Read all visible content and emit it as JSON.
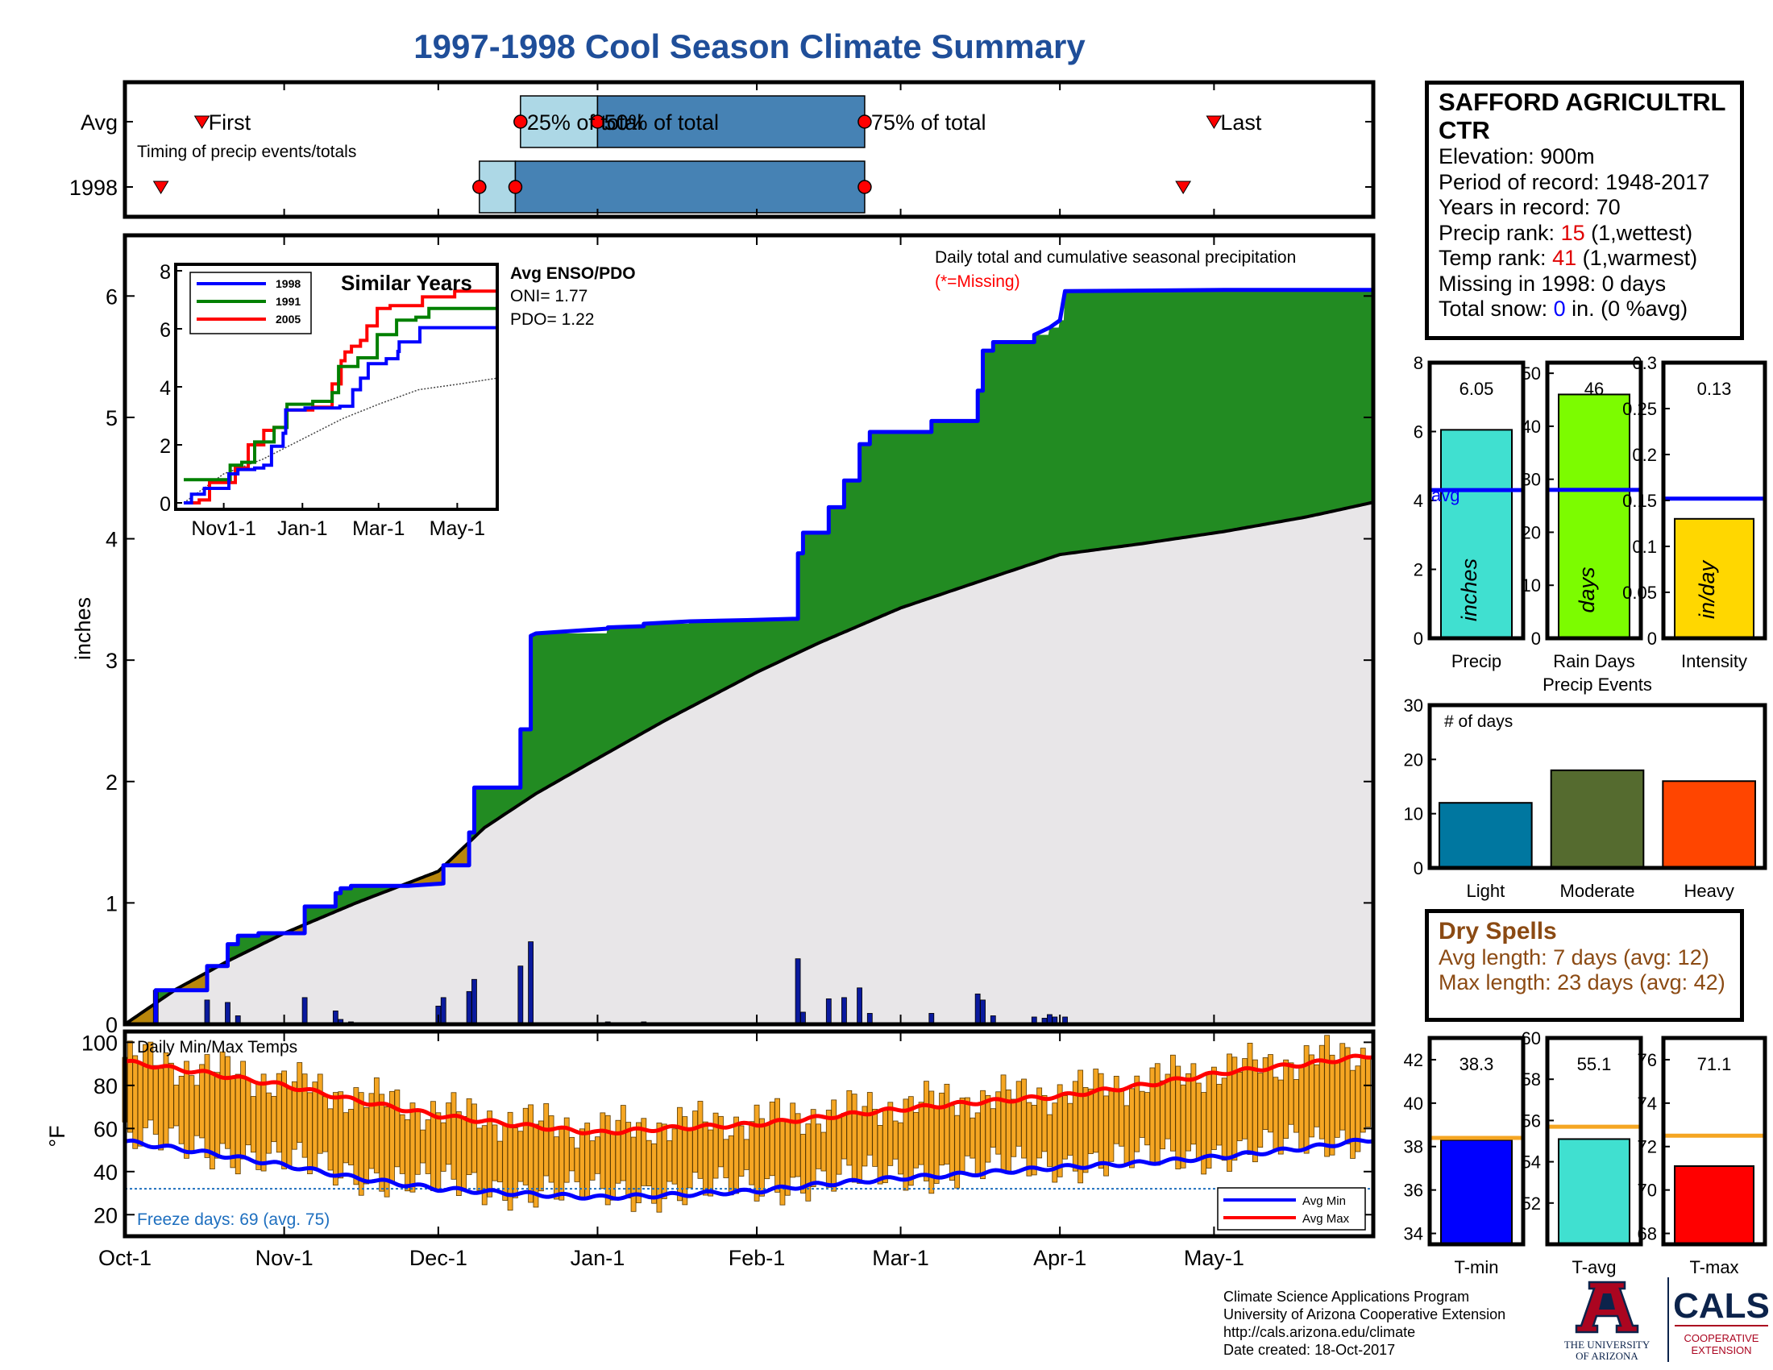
{
  "title": "1997-1998 Cool Season Climate Summary",
  "station": {
    "name": "SAFFORD AGRICULTRL CTR",
    "elevation_label": "Elevation: 900m",
    "period_label": "Period of record: 1948-2017",
    "years_label": "Years in record: 70",
    "precip_rank_prefix": "Precip rank: ",
    "precip_rank": "15",
    "precip_rank_suffix": " (1,wettest)",
    "temp_rank_prefix": "Temp rank: ",
    "temp_rank": "41",
    "temp_rank_suffix": " (1,warmest)",
    "missing_label": "Missing in 1998: 0 days",
    "snow_prefix": "Total snow: ",
    "snow_value": "0",
    "snow_suffix": " in. (0 %avg)"
  },
  "dry_spells": {
    "heading": "Dry Spells",
    "avg_label": "Avg length: 7 days (avg: 12)",
    "max_label": "Max length: 23 days (avg: 42)"
  },
  "footer": {
    "lines": [
      "Climate Science Applications Program",
      "University of Arizona Cooperative Extension",
      "http://cals.arizona.edu/climate",
      " Date created: 18-Oct-2017"
    ]
  },
  "logos": {
    "ua_lines": [
      "THE UNIVERSITY",
      "OF ARIZONA"
    ],
    "cals_name": "CALS",
    "cals_lines": [
      "COOPERATIVE",
      "EXTENSION"
    ]
  },
  "chart_data": [
    {
      "id": "timing",
      "type": "timeline",
      "annotation": "Timing of precip events/totals",
      "rows": [
        {
          "label": "Avg",
          "first": "Oct-16",
          "q25": "Dec-17",
          "q50": "Jan-1",
          "q75": "Feb-22",
          "last": "May-1",
          "labels": {
            "first": "First",
            "q25": "25% of total",
            "q50": "50% of total",
            "q75": "75% of total",
            "last": "Last"
          }
        },
        {
          "label": "1998",
          "first": "Oct-8",
          "q25": "Dec-9",
          "q50": "Dec-16",
          "q75": "Feb-22",
          "last": "Apr-25"
        }
      ],
      "colors": {
        "first_to_median": "#add8e6",
        "median_to_q75": "#4682b4"
      }
    },
    {
      "id": "precip",
      "type": "area",
      "title": "Daily total and cumulative seasonal precipitation",
      "note": "(*=Missing)",
      "ylabel": "inches",
      "ylim": [
        0,
        6.5
      ],
      "yticks": [
        0,
        1,
        2,
        3,
        4,
        5,
        6
      ],
      "x_ticks": [
        "Oct-1",
        "Nov-1",
        "Dec-1",
        "Jan-1",
        "Feb-1",
        "Mar-1",
        "Apr-1",
        "May-1"
      ],
      "x_tick_days": [
        0,
        31,
        61,
        92,
        123,
        151,
        182,
        212
      ],
      "x_range_days": [
        0,
        243
      ],
      "cumulative_1998": [
        [
          0,
          0
        ],
        [
          6,
          0
        ],
        [
          6,
          0.28
        ],
        [
          16,
          0.28
        ],
        [
          16,
          0.48
        ],
        [
          20,
          0.48
        ],
        [
          20,
          0.66
        ],
        [
          22,
          0.66
        ],
        [
          22,
          0.73
        ],
        [
          26,
          0.73
        ],
        [
          26,
          0.75
        ],
        [
          35,
          0.75
        ],
        [
          35,
          0.97
        ],
        [
          41,
          0.97
        ],
        [
          41,
          1.08
        ],
        [
          42,
          1.08
        ],
        [
          42,
          1.12
        ],
        [
          44,
          1.12
        ],
        [
          44,
          1.14
        ],
        [
          55,
          1.14
        ],
        [
          62,
          1.16
        ],
        [
          62,
          1.31
        ],
        [
          67,
          1.31
        ],
        [
          67,
          1.58
        ],
        [
          68,
          1.58
        ],
        [
          68,
          1.95
        ],
        [
          77,
          1.95
        ],
        [
          77,
          2.43
        ],
        [
          79,
          2.43
        ],
        [
          79,
          3.2
        ],
        [
          80,
          3.22
        ],
        [
          94,
          3.26
        ],
        [
          94,
          3.27
        ],
        [
          101,
          3.28
        ],
        [
          101,
          3.3
        ],
        [
          110,
          3.32
        ],
        [
          121,
          3.33
        ],
        [
          130,
          3.34
        ],
        [
          131,
          3.34
        ],
        [
          131,
          3.88
        ],
        [
          132,
          3.88
        ],
        [
          132,
          4.05
        ],
        [
          137,
          4.05
        ],
        [
          137,
          4.26
        ],
        [
          140,
          4.26
        ],
        [
          140,
          4.48
        ],
        [
          143,
          4.48
        ],
        [
          143,
          4.78
        ],
        [
          145,
          4.78
        ],
        [
          145,
          4.88
        ],
        [
          151,
          4.88
        ],
        [
          157,
          4.88
        ],
        [
          157,
          4.97
        ],
        [
          166,
          4.97
        ],
        [
          166,
          5.22
        ],
        [
          167,
          5.22
        ],
        [
          167,
          5.55
        ],
        [
          169,
          5.55
        ],
        [
          169,
          5.62
        ],
        [
          177,
          5.62
        ],
        [
          177,
          5.68
        ],
        [
          180,
          5.74
        ],
        [
          182,
          5.8
        ],
        [
          183,
          6.04
        ],
        [
          214,
          6.05
        ],
        [
          243,
          6.05
        ]
      ],
      "average_cumulative": [
        [
          0,
          0
        ],
        [
          10,
          0.29
        ],
        [
          20,
          0.52
        ],
        [
          31,
          0.75
        ],
        [
          45,
          1.0
        ],
        [
          61,
          1.26
        ],
        [
          70,
          1.62
        ],
        [
          80,
          1.9
        ],
        [
          92,
          2.19
        ],
        [
          105,
          2.5
        ],
        [
          123,
          2.9
        ],
        [
          135,
          3.14
        ],
        [
          151,
          3.43
        ],
        [
          165,
          3.63
        ],
        [
          182,
          3.87
        ],
        [
          198,
          3.96
        ],
        [
          214,
          4.06
        ],
        [
          230,
          4.18
        ],
        [
          243,
          4.3
        ]
      ],
      "daily_1998": [
        [
          6,
          0.28
        ],
        [
          16,
          0.2
        ],
        [
          20,
          0.18
        ],
        [
          22,
          0.07
        ],
        [
          35,
          0.22
        ],
        [
          41,
          0.11
        ],
        [
          42,
          0.04
        ],
        [
          44,
          0.02
        ],
        [
          61,
          0.15
        ],
        [
          62,
          0.22
        ],
        [
          67,
          0.27
        ],
        [
          68,
          0.37
        ],
        [
          77,
          0.48
        ],
        [
          79,
          0.68
        ],
        [
          94,
          0.02
        ],
        [
          101,
          0.02
        ],
        [
          121,
          0.01
        ],
        [
          131,
          0.54
        ],
        [
          132,
          0.1
        ],
        [
          137,
          0.21
        ],
        [
          140,
          0.22
        ],
        [
          143,
          0.3
        ],
        [
          145,
          0.09
        ],
        [
          157,
          0.09
        ],
        [
          166,
          0.25
        ],
        [
          167,
          0.2
        ],
        [
          169,
          0.07
        ],
        [
          177,
          0.06
        ],
        [
          179,
          0.05
        ],
        [
          180,
          0.08
        ],
        [
          181,
          0.06
        ],
        [
          183,
          0.06
        ]
      ],
      "colors": {
        "above_avg": "#228b22",
        "below_avg": "#b8860b",
        "avg_fill": "#e8e6e8",
        "line_1998": "#0000ff"
      }
    },
    {
      "id": "similar_years",
      "type": "line",
      "title": "Similar Years",
      "ylim": [
        0,
        8
      ],
      "yticks": [
        0,
        2,
        4,
        6,
        8
      ],
      "x_ticks": [
        "Nov1-1",
        "Jan-1",
        "Mar-1",
        "May-1"
      ],
      "enso_title": "Avg ENSO/PDO",
      "oni_label": "ONI= 1.77",
      "pdo_label": "PDO= 1.22",
      "series": [
        {
          "name": "1998",
          "color": "#0000ff",
          "values": [
            [
              0,
              0
            ],
            [
              6,
              0.3
            ],
            [
              16,
              0.5
            ],
            [
              35,
              1.0
            ],
            [
              42,
              1.15
            ],
            [
              55,
              1.2
            ],
            [
              62,
              1.3
            ],
            [
              68,
              1.95
            ],
            [
              77,
              2.4
            ],
            [
              79,
              3.2
            ],
            [
              94,
              3.27
            ],
            [
              121,
              3.33
            ],
            [
              131,
              3.9
            ],
            [
              137,
              4.3
            ],
            [
              143,
              4.8
            ],
            [
              157,
              4.97
            ],
            [
              166,
              5.22
            ],
            [
              167,
              5.55
            ],
            [
              183,
              6.04
            ],
            [
              243,
              6.05
            ]
          ]
        },
        {
          "name": "1991",
          "color": "#008000",
          "values": [
            [
              0,
              0.8
            ],
            [
              30,
              0.8
            ],
            [
              36,
              1.3
            ],
            [
              45,
              1.4
            ],
            [
              55,
              2.1
            ],
            [
              70,
              2.6
            ],
            [
              80,
              3.4
            ],
            [
              100,
              3.5
            ],
            [
              115,
              3.8
            ],
            [
              120,
              4.7
            ],
            [
              135,
              5.0
            ],
            [
              150,
              5.8
            ],
            [
              165,
              6.3
            ],
            [
              180,
              6.4
            ],
            [
              190,
              6.7
            ],
            [
              243,
              6.7
            ]
          ]
        },
        {
          "name": "2005",
          "color": "#ff0000",
          "values": [
            [
              0,
              0
            ],
            [
              12,
              0.1
            ],
            [
              20,
              0.7
            ],
            [
              30,
              0.7
            ],
            [
              40,
              1.2
            ],
            [
              50,
              2.0
            ],
            [
              62,
              2.5
            ],
            [
              70,
              2.6
            ],
            [
              79,
              3.2
            ],
            [
              100,
              3.3
            ],
            [
              115,
              4.1
            ],
            [
              122,
              4.9
            ],
            [
              125,
              5.2
            ],
            [
              130,
              5.4
            ],
            [
              137,
              5.6
            ],
            [
              142,
              6.1
            ],
            [
              150,
              6.7
            ],
            [
              160,
              6.8
            ],
            [
              175,
              6.8
            ],
            [
              185,
              7.1
            ],
            [
              200,
              7.1
            ],
            [
              210,
              7.3
            ],
            [
              243,
              7.3
            ]
          ]
        }
      ],
      "average": [
        [
          0,
          0
        ],
        [
          31,
          1.0
        ],
        [
          61,
          1.5
        ],
        [
          92,
          2.2
        ],
        [
          123,
          2.9
        ],
        [
          151,
          3.4
        ],
        [
          182,
          3.9
        ],
        [
          214,
          4.1
        ],
        [
          243,
          4.3
        ]
      ]
    },
    {
      "id": "temperature",
      "type": "bar",
      "title": "Daily Min/Max Temps",
      "ylabel": "°F",
      "ylim": [
        10,
        105
      ],
      "yticks": [
        20,
        40,
        60,
        80,
        100
      ],
      "freeze_label": "Freeze days: 69 (avg. 75)",
      "freeze_line_f": 32,
      "legend": [
        "Avg Min",
        "Avg Max"
      ],
      "avg_max": [
        [
          0,
          91
        ],
        [
          15,
          86
        ],
        [
          31,
          80
        ],
        [
          45,
          73
        ],
        [
          61,
          66
        ],
        [
          75,
          62
        ],
        [
          92,
          58
        ],
        [
          105,
          60
        ],
        [
          123,
          62
        ],
        [
          135,
          65
        ],
        [
          151,
          69
        ],
        [
          165,
          72
        ],
        [
          182,
          75
        ],
        [
          198,
          80
        ],
        [
          214,
          86
        ],
        [
          230,
          90
        ],
        [
          243,
          94
        ]
      ],
      "avg_min": [
        [
          0,
          54
        ],
        [
          15,
          49
        ],
        [
          31,
          43
        ],
        [
          45,
          37
        ],
        [
          61,
          32
        ],
        [
          75,
          30
        ],
        [
          92,
          28
        ],
        [
          105,
          29
        ],
        [
          123,
          31
        ],
        [
          135,
          34
        ],
        [
          151,
          37
        ],
        [
          165,
          39
        ],
        [
          182,
          42
        ],
        [
          198,
          44
        ],
        [
          214,
          47
        ],
        [
          230,
          51
        ],
        [
          243,
          55
        ]
      ],
      "colors": {
        "range": "#f5a623",
        "avg_max": "#ff0000",
        "avg_min": "#0000ff",
        "freeze": "#1e6fbf"
      }
    },
    {
      "id": "precip_stats",
      "type": "bar",
      "panels": [
        {
          "label": "Precip",
          "inner": "inches",
          "value": 6.05,
          "value_label": "6.05",
          "avg": 4.3,
          "avg_text": "avg",
          "ylim": [
            0,
            8
          ],
          "yticks": [
            0,
            2,
            4,
            6,
            8
          ],
          "color": "#40e0d0"
        },
        {
          "label": "Rain Days",
          "inner": "days",
          "value": 46,
          "value_label": "46",
          "avg": 28,
          "ylim": [
            0,
            52
          ],
          "yticks": [
            0,
            10,
            20,
            30,
            40,
            50
          ],
          "color": "#7cfc00"
        },
        {
          "label": "Intensity",
          "inner": "in/day",
          "value": 0.13,
          "value_label": "0.13",
          "avg": 0.152,
          "ylim": [
            0,
            0.3
          ],
          "yticks": [
            0,
            0.05,
            0.1,
            0.15,
            0.2,
            0.25,
            0.3
          ],
          "color": "#ffd700"
        }
      ]
    },
    {
      "id": "precip_events",
      "type": "bar",
      "title": "Precip Events",
      "ylabel": "# of days",
      "categories": [
        "Light",
        "Moderate",
        "Heavy"
      ],
      "values": [
        12,
        18,
        16
      ],
      "colors": [
        "#0077a0",
        "#556b2f",
        "#ff4500"
      ],
      "ylim": [
        0,
        30
      ],
      "yticks": [
        0,
        10,
        20,
        30
      ]
    },
    {
      "id": "temp_stats",
      "type": "bar",
      "panels": [
        {
          "label": "T-min",
          "value": 38.3,
          "value_label": "38.3",
          "avg": 38.4,
          "ylim": [
            33.5,
            43
          ],
          "yticks": [
            34,
            36,
            38,
            40,
            42
          ],
          "color": "#0000ff"
        },
        {
          "label": "T-avg",
          "value": 55.1,
          "value_label": "55.1",
          "avg": 55.7,
          "ylim": [
            50,
            60
          ],
          "yticks": [
            52,
            54,
            56,
            58,
            60
          ],
          "color": "#40e0d0"
        },
        {
          "label": "T-max",
          "value": 71.1,
          "value_label": "71.1",
          "avg": 72.5,
          "ylim": [
            67.5,
            77
          ],
          "yticks": [
            68,
            70,
            72,
            74,
            76
          ],
          "color": "#ff0000"
        }
      ]
    }
  ]
}
